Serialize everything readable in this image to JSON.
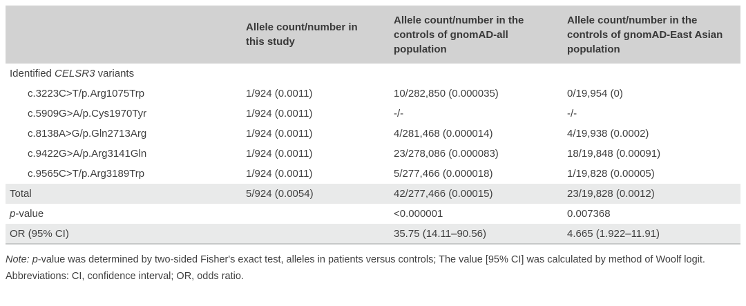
{
  "colors": {
    "header_bg": "#d2d2d2",
    "row_shade": "#e9eaea",
    "bottom_border": "#c6c8c8",
    "text": "#3f3f3f"
  },
  "table": {
    "headers": {
      "col1": "",
      "col2": "Allele count/number in this study",
      "col3": "Allele count/number in the controls of gnomAD-all population",
      "col4": "Allele count/number in the controls of gnomAD-East Asian population"
    },
    "section": {
      "pre": "Identified ",
      "gene": "CELSR3",
      "post": " variants"
    },
    "rows": [
      {
        "label": "c.3223C>T/p.Arg1075Trp",
        "study": "1/924 (0.0011)",
        "gnomad_all": "10/282,850 (0.000035)",
        "gnomad_ea": "0/19,954 (0)"
      },
      {
        "label": "c.5909G>A/p.Cys1970Tyr",
        "study": "1/924 (0.0011)",
        "gnomad_all": "-/-",
        "gnomad_ea": "-/-"
      },
      {
        "label": "c.8138A>G/p.Gln2713Arg",
        "study": "1/924 (0.0011)",
        "gnomad_all": "4/281,468 (0.000014)",
        "gnomad_ea": "4/19,938 (0.0002)"
      },
      {
        "label": "c.9422G>A/p.Arg3141Gln",
        "study": "1/924 (0.0011)",
        "gnomad_all": "23/278,086 (0.000083)",
        "gnomad_ea": "18/19,848 (0.00091)"
      },
      {
        "label": "c.9565C>T/p.Arg3189Trp",
        "study": "1/924 (0.0011)",
        "gnomad_all": "5/277,466 (0.000018)",
        "gnomad_ea": "1/19,828 (0.00005)"
      }
    ],
    "total": {
      "label": "Total",
      "study": "5/924 (0.0054)",
      "gnomad_all": "42/277,466 (0.00015)",
      "gnomad_ea": "23/19,828 (0.0012)"
    },
    "pvalue": {
      "label_italic": "p",
      "label_rest": "-value",
      "study": "",
      "gnomad_all": "<0.000001",
      "gnomad_ea": "0.007368"
    },
    "or": {
      "label": "OR (95% CI)",
      "study": "",
      "gnomad_all": "35.75 (14.11–90.56)",
      "gnomad_ea": "4.665 (1.922–11.91)"
    }
  },
  "notes": {
    "note_label": "Note: ",
    "p_italic": "p",
    "note_rest": "-value was determined by two-sided Fisher's exact test, alleles in patients versus controls; The value [95% CI] was calculated by method of Woolf logit.",
    "abbreviations": "Abbreviations: CI, confidence interval; OR, odds ratio."
  }
}
